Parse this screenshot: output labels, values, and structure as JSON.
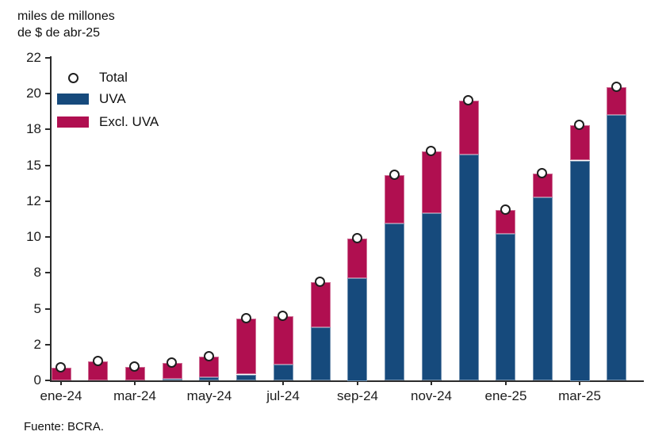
{
  "title": {
    "line1": "miles de millones",
    "line2": "de $ de abr-25"
  },
  "source": "Fuente: BCRA.",
  "legend": {
    "total": "Total",
    "uva": "UVA",
    "excl_uva": "Excl. UVA"
  },
  "colors": {
    "uva_blue": "#164a7c",
    "excl_uva_crimson": "#b00f50",
    "axis": "#2b2b2b",
    "marker_fill": "#ffffff",
    "marker_stroke": "#1f1f1f"
  },
  "chart_data": {
    "type": "bar",
    "stacked": true,
    "title": "miles de millones de $ de abr-25",
    "xlabel": "",
    "ylabel": "miles de millones de $ de abr-25",
    "ylim": [
      0,
      22
    ],
    "grid": false,
    "legend_position": "top-left",
    "categories": [
      "ene-24",
      "feb-24",
      "mar-24",
      "abr-24",
      "may-24",
      "jun-24",
      "jul-24",
      "ago-24",
      "sep-24",
      "oct-24",
      "nov-24",
      "dic-24",
      "ene-25",
      "feb-25",
      "mar-25",
      "abr-25"
    ],
    "x_tick_labels": [
      "ene-24",
      "mar-24",
      "may-24",
      "jul-24",
      "sep-24",
      "nov-24",
      "ene-25",
      "mar-25"
    ],
    "x_tick_every": 2,
    "y_tick_labels": [
      "0",
      "2",
      "5",
      "8",
      "10",
      "12",
      "15",
      "18",
      "20",
      "22"
    ],
    "series": [
      {
        "name": "UVA",
        "values": [
          0,
          0,
          0,
          0.1,
          0.2,
          0.4,
          1.1,
          3.6,
          7.0,
          10.7,
          11.4,
          15.4,
          10.0,
          12.5,
          15.0,
          18.1
        ]
      },
      {
        "name": "Excl. UVA",
        "values": [
          0.85,
          1.3,
          0.9,
          1.1,
          1.4,
          3.8,
          3.3,
          3.1,
          2.7,
          3.3,
          4.2,
          3.7,
          1.6,
          1.6,
          2.4,
          1.9
        ]
      }
    ],
    "totals": [
      0.85,
      1.3,
      0.9,
      1.2,
      1.6,
      4.2,
      4.4,
      6.7,
      9.7,
      14.0,
      15.6,
      19.1,
      11.6,
      14.1,
      17.4,
      20.0
    ]
  }
}
